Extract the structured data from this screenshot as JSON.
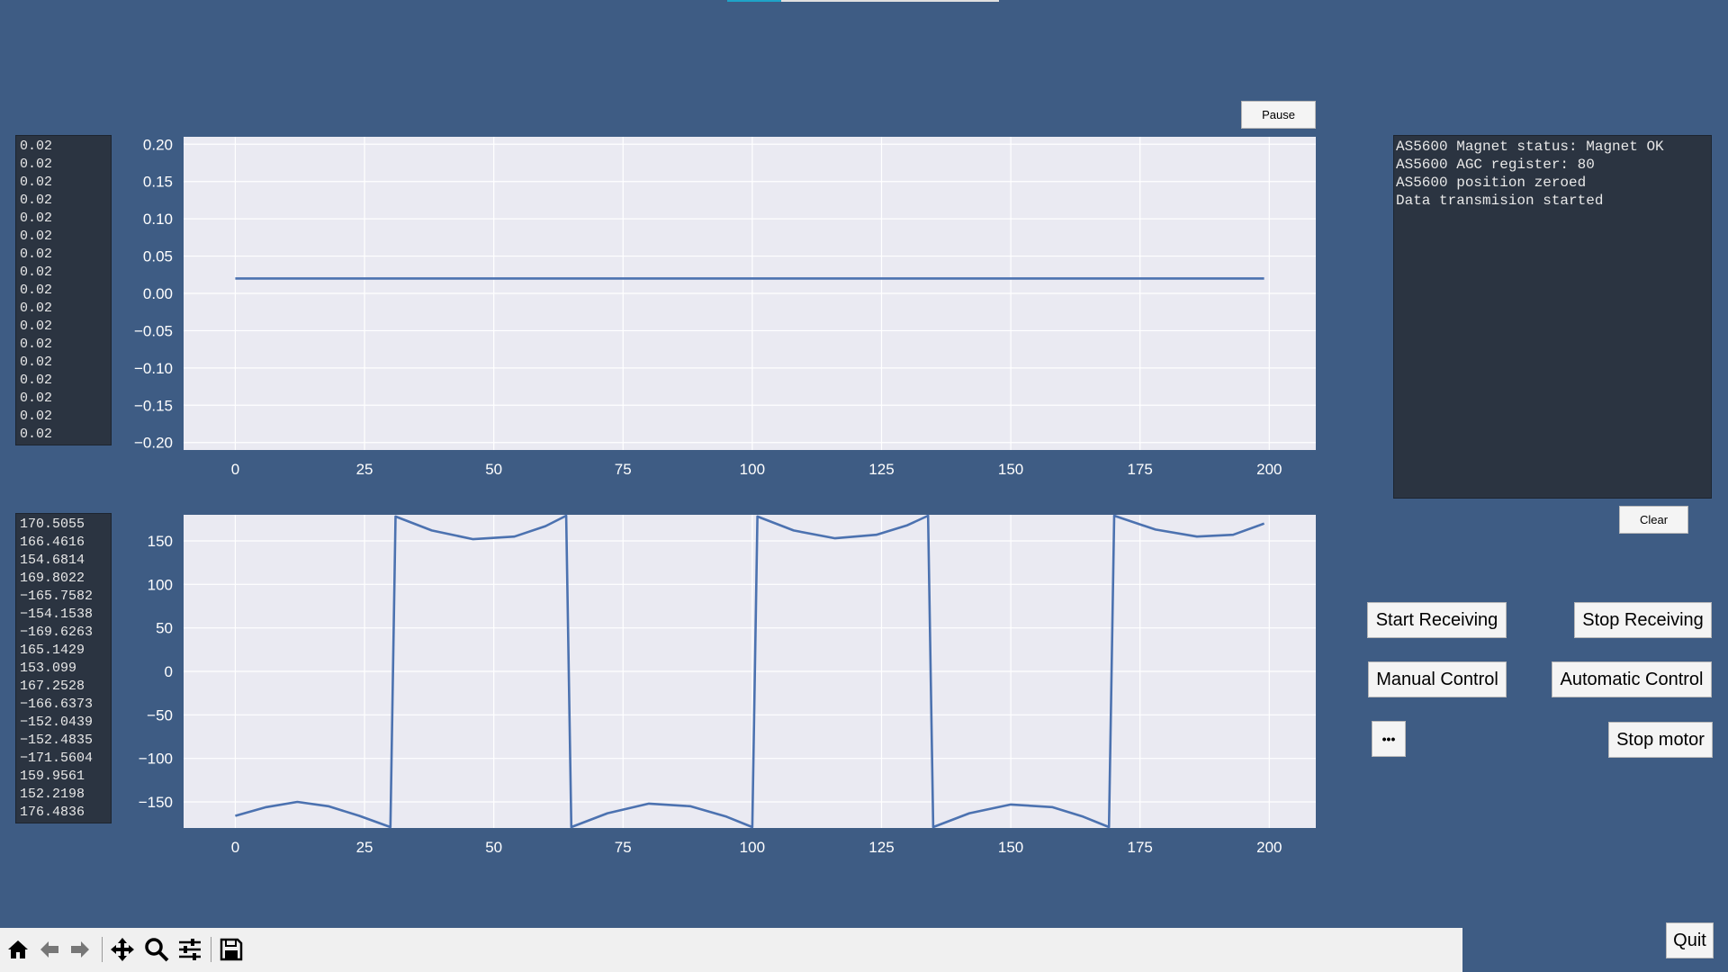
{
  "controls": {
    "pause_label": "Pause",
    "clear_label": "Clear",
    "start_receiving_label": "Start Receiving",
    "stop_receiving_label": "Stop Receiving",
    "manual_control_label": "Manual Control",
    "automatic_control_label": "Automatic Control",
    "more_label": "•••",
    "stop_motor_label": "Stop motor",
    "quit_label": "Quit"
  },
  "log": {
    "lines": [
      "AS5600 Magnet status: Magnet OK",
      "AS5600 AGC register: 80",
      "AS5600 position zeroed",
      "Data transmision started"
    ]
  },
  "top_list": {
    "values": [
      "0.02",
      "0.02",
      "0.02",
      "0.02",
      "0.02",
      "0.02",
      "0.02",
      "0.02",
      "0.02",
      "0.02",
      "0.02",
      "0.02",
      "0.02",
      "0.02",
      "0.02",
      "0.02",
      "0.02"
    ]
  },
  "bottom_list": {
    "values": [
      "170.5055",
      "166.4616",
      "154.6814",
      "169.8022",
      "−165.7582",
      "−154.1538",
      "−169.6263",
      "165.1429",
      "153.099",
      "167.2528",
      "−166.6373",
      "−152.0439",
      "−152.4835",
      "−171.5604",
      "159.9561",
      "152.2198",
      "176.4836"
    ]
  },
  "toolbar": {
    "icons": [
      "home-icon",
      "back-arrow-icon",
      "forward-arrow-icon",
      "pan-icon",
      "zoom-icon",
      "configure-subplots-icon",
      "save-icon"
    ]
  },
  "colors": {
    "background": "#3e5c84",
    "plot_bg": "#eaeaf2",
    "line": "#4c72b0",
    "list_bg": "#2b3441"
  },
  "chart_data": [
    {
      "type": "line",
      "title": "",
      "xlabel": "",
      "ylabel": "",
      "xlim": [
        -10,
        209
      ],
      "ylim": [
        -0.21,
        0.21
      ],
      "xticks": [
        0,
        25,
        50,
        75,
        100,
        125,
        150,
        175,
        200
      ],
      "xtick_labels": [
        "0",
        "25",
        "50",
        "75",
        "100",
        "125",
        "150",
        "175",
        "200"
      ],
      "yticks": [
        0.2,
        0.15,
        0.1,
        0.05,
        0.0,
        -0.05,
        -0.1,
        -0.15,
        -0.2
      ],
      "ytick_labels": [
        "0.20",
        "0.15",
        "0.10",
        "0.05",
        "0.00",
        "−0.05",
        "−0.10",
        "−0.15",
        "−0.20"
      ],
      "grid": true,
      "series": [
        {
          "x": [
            0,
            199
          ],
          "y": [
            0.02,
            0.02
          ]
        }
      ]
    },
    {
      "type": "line",
      "title": "",
      "xlabel": "",
      "ylabel": "",
      "xlim": [
        -10,
        209
      ],
      "ylim": [
        -180,
        180
      ],
      "xticks": [
        0,
        25,
        50,
        75,
        100,
        125,
        150,
        175,
        200
      ],
      "xtick_labels": [
        "0",
        "25",
        "50",
        "75",
        "100",
        "125",
        "150",
        "175",
        "200"
      ],
      "yticks": [
        150,
        100,
        50,
        0,
        -50,
        -100,
        -150
      ],
      "ytick_labels": [
        "150",
        "100",
        "50",
        "0",
        "−50",
        "−100",
        "−150"
      ],
      "grid": true,
      "series": [
        {
          "x": [
            0,
            6,
            12,
            18,
            24,
            30,
            31,
            38,
            46,
            54,
            60,
            64,
            65,
            72,
            80,
            88,
            95,
            100,
            101,
            108,
            116,
            124,
            130,
            134,
            135,
            142,
            150,
            158,
            164,
            169,
            170,
            178,
            186,
            193,
            199
          ],
          "y": [
            -166,
            -156,
            -150,
            -155,
            -166,
            -179,
            178,
            162,
            152,
            155,
            167,
            179,
            -179,
            -163,
            -152,
            -155,
            -167,
            -179,
            178,
            162,
            153,
            157,
            168,
            179,
            -179,
            -163,
            -153,
            -156,
            -167,
            -179,
            179,
            163,
            155,
            157,
            170
          ]
        }
      ]
    }
  ]
}
